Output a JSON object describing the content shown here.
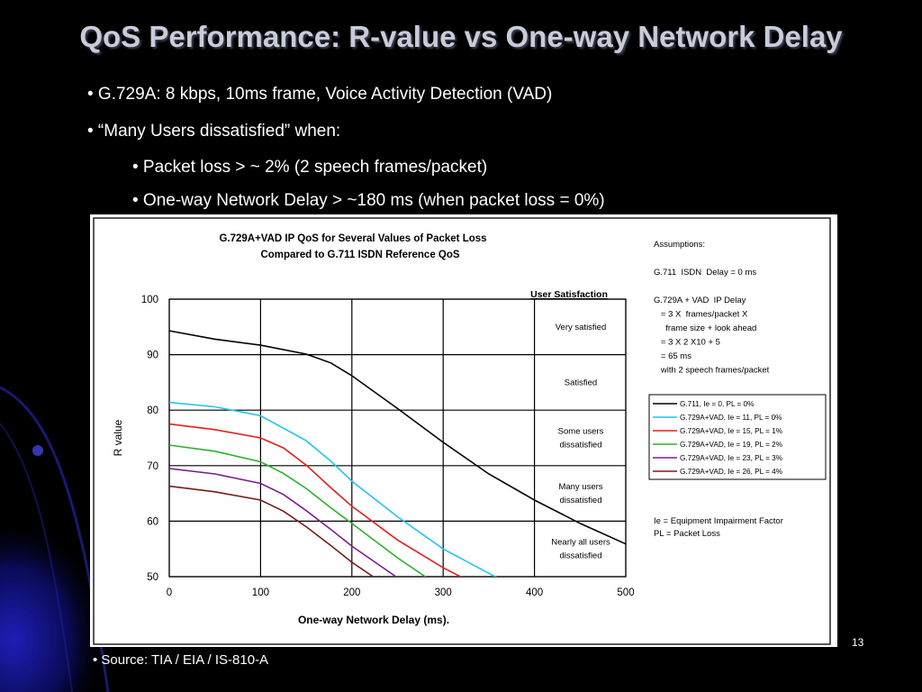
{
  "slide": {
    "title": "QoS Performance: R-value vs One-way Network Delay",
    "bullets": [
      "• G.729A: 8 kbps, 10ms frame, Voice Activity Detection (VAD)",
      "• “Many Users dissatisfied” when:",
      "• Packet loss > ~ 2%  (2 speech frames/packet)",
      "• One-way Network Delay > ~180 ms (when packet loss = 0%)"
    ],
    "source": "• Source: TIA / EIA / IS-810-A",
    "page_number": "13"
  },
  "chart_data": {
    "type": "line",
    "title_lines": [
      "G.729A+VAD IP QoS for Several Values of Packet Loss",
      "Compared to G.711 ISDN Reference QoS"
    ],
    "xlabel": "One-way Network Delay (ms).",
    "ylabel": "R value",
    "xlim": [
      0,
      500
    ],
    "ylim": [
      50,
      100
    ],
    "xticks": [
      0,
      100,
      200,
      300,
      400,
      500
    ],
    "yticks": [
      50,
      60,
      70,
      80,
      90,
      100
    ],
    "grid": true,
    "legend_placement": "right",
    "series": [
      {
        "name": "G.711, Ie = 0, PL = 0%",
        "color": "#000000",
        "x": [
          0,
          50,
          100,
          150,
          177,
          200,
          250,
          300,
          350,
          400,
          450,
          500
        ],
        "y": [
          94.3,
          92.8,
          91.7,
          90.1,
          88.5,
          86.2,
          80.3,
          74.2,
          68.5,
          63.8,
          59.6,
          55.9
        ]
      },
      {
        "name": "G.729A+VAD, Ie = 11, PL = 0%",
        "color": "#22c4f0",
        "x": [
          0,
          50,
          100,
          150,
          177,
          200,
          250,
          300,
          350,
          375
        ],
        "y": [
          81.4,
          80.6,
          79.0,
          74.5,
          70.8,
          67.2,
          60.8,
          55.0,
          50.6,
          48.5
        ]
      },
      {
        "name": "G.729A+VAD, Ie = 15, PL = 1%",
        "color": "#e0201c",
        "x": [
          0,
          50,
          100,
          125,
          150,
          177,
          200,
          250,
          300,
          325
        ],
        "y": [
          77.5,
          76.5,
          75.0,
          73.2,
          70.1,
          66.0,
          62.7,
          56.6,
          51.6,
          49.5
        ]
      },
      {
        "name": "G.729A+VAD, Ie = 19, PL = 2%",
        "color": "#2cb02c",
        "x": [
          0,
          50,
          100,
          125,
          150,
          177,
          200,
          250,
          283
        ],
        "y": [
          73.7,
          72.6,
          70.7,
          68.6,
          65.9,
          62.4,
          59.6,
          53.4,
          49.7
        ]
      },
      {
        "name": "G.729A+VAD, Ie = 23, PL = 3%",
        "color": "#7a1f8f",
        "x": [
          0,
          50,
          100,
          125,
          150,
          177,
          200,
          250
        ],
        "y": [
          69.5,
          68.5,
          66.8,
          64.8,
          61.9,
          58.5,
          55.5,
          49.8
        ]
      },
      {
        "name": "G.729A+VAD, Ie = 26, PL = 4%",
        "color": "#7a1a1a",
        "x": [
          0,
          50,
          100,
          125,
          150,
          177,
          200,
          225
        ],
        "y": [
          66.3,
          65.3,
          63.8,
          61.8,
          59.0,
          55.6,
          52.6,
          49.8
        ]
      }
    ],
    "satisfaction_header": "User Satisfaction",
    "satisfaction_bands": [
      {
        "lines": [
          "Very satisfied"
        ],
        "from": 90,
        "to": 100
      },
      {
        "lines": [
          "Satisfied"
        ],
        "from": 80,
        "to": 90
      },
      {
        "lines": [
          "Some users",
          "dissatisfied"
        ],
        "from": 70,
        "to": 80
      },
      {
        "lines": [
          "Many users",
          "dissatisfied"
        ],
        "from": 60,
        "to": 70
      },
      {
        "lines": [
          "Nearly all users",
          "dissatisfied"
        ],
        "from": 50,
        "to": 60
      }
    ],
    "assumptions_lines": [
      "Assumptions:",
      "",
      "G.711  ISDN  Delay = 0 ms",
      "",
      "G.729A + VAD  IP Delay",
      "   = 3 X  frames/packet X",
      "     frame size + look ahead",
      "   = 3 X 2 X10 + 5",
      "   = 65 ms",
      "   with 2 speech frames/packet"
    ],
    "notes_lines": [
      "Ie = Equipment Impairment Factor",
      "PL = Packet Loss"
    ]
  }
}
